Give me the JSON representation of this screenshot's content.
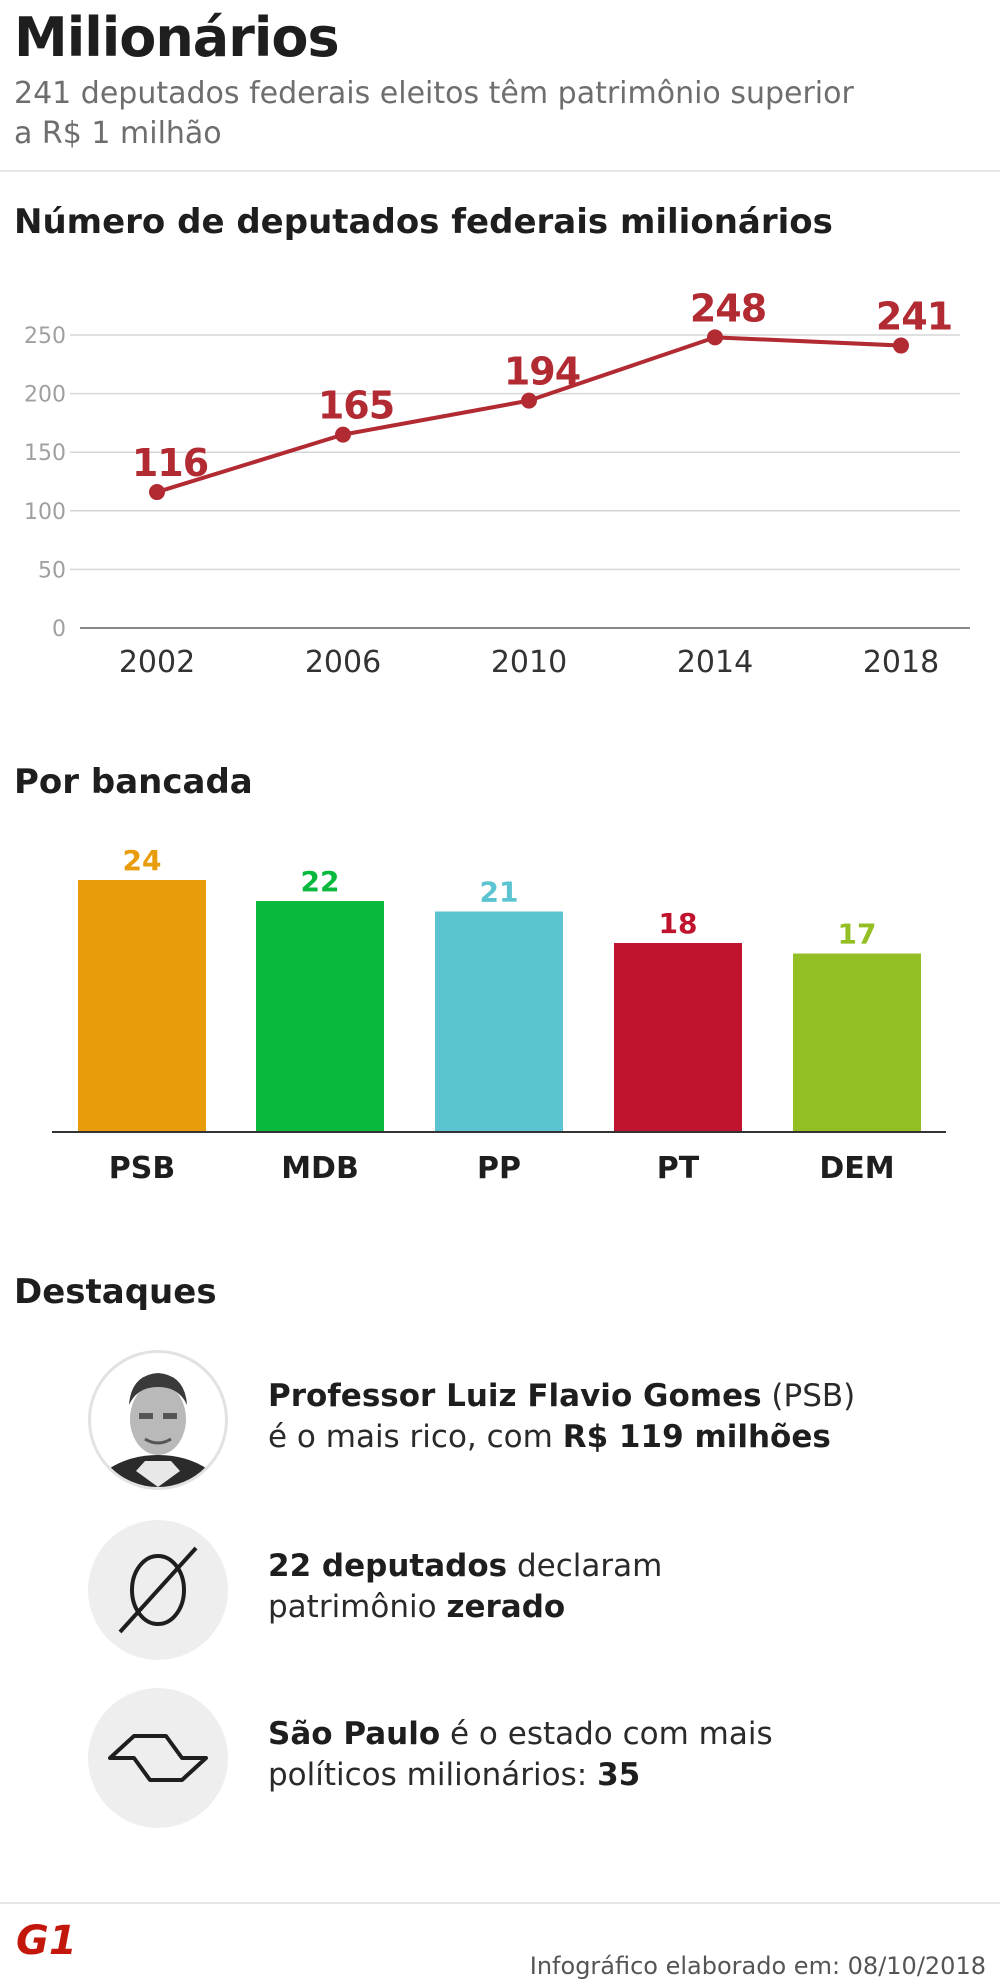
{
  "header": {
    "title": "Milionários",
    "subtitle_line1": "241 deputados federais eleitos têm patrimônio superior",
    "subtitle_line2": "a R$ 1 milhão"
  },
  "line_section": {
    "title": "Número de deputados federais milionários"
  },
  "bar_section": {
    "title": "Por bancada"
  },
  "highlights_section": {
    "title": "Destaques"
  },
  "highlights": [
    {
      "icon": "portrait-photo",
      "p1_bold": "Professor Luiz Flavio Gomes",
      "p1": " (PSB)",
      "p2": "é o mais rico, com ",
      "p2_bold": "R$ 119 milhões"
    },
    {
      "icon": "empty-set-icon",
      "p1_bold": "22 deputados",
      "p1": " declaram",
      "p2": "patrimônio ",
      "p2_bold": "zerado"
    },
    {
      "icon": "sao-paulo-map-icon",
      "p1_bold": "São Paulo",
      "p1": " é o estado com mais",
      "p2": "políticos milionários: ",
      "p2_bold": "35"
    }
  ],
  "footer": {
    "logo": "G1",
    "credit": "Infográfico elaborado em: 08/10/2018"
  },
  "colors": {
    "line": "#b22a32",
    "grid": "#d6d6d6",
    "axis": "#888888"
  },
  "chart_data": [
    {
      "type": "line",
      "title": "Número de deputados federais milionários",
      "x": [
        "2002",
        "2006",
        "2010",
        "2014",
        "2018"
      ],
      "values": [
        116,
        165,
        194,
        248,
        241
      ],
      "yticks": [
        0,
        50,
        100,
        150,
        200,
        250
      ],
      "ylim": [
        0,
        250
      ],
      "grid": true,
      "xlabel": "",
      "ylabel": ""
    },
    {
      "type": "bar",
      "title": "Por bancada",
      "categories": [
        "PSB",
        "MDB",
        "PP",
        "PT",
        "DEM"
      ],
      "values": [
        24,
        22,
        21,
        18,
        17
      ],
      "colors": [
        "#e89c0c",
        "#09b93e",
        "#5bc4d0",
        "#c0132e",
        "#94bf24"
      ],
      "ylim": [
        0,
        24
      ]
    }
  ]
}
